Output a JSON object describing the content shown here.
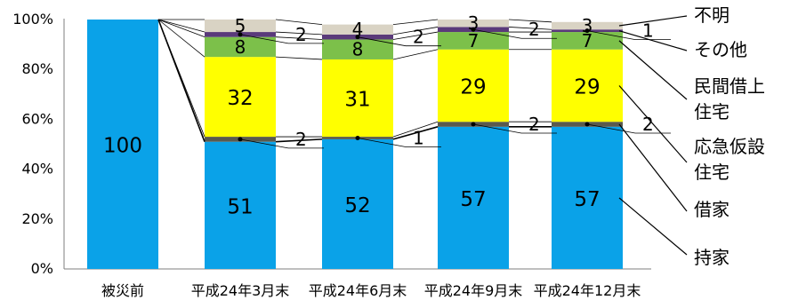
{
  "chart_data": {
    "type": "bar",
    "stacked": true,
    "percent": true,
    "categories": [
      "被災前",
      "平成24年3月末",
      "平成24年6月末",
      "平成24年9月末",
      "平成24年12月末"
    ],
    "ylim": [
      0,
      100
    ],
    "yticks": [
      0,
      20,
      40,
      60,
      80,
      100
    ],
    "ytick_labels": [
      "0%",
      "20%",
      "40%",
      "60%",
      "80%",
      "100%"
    ],
    "series": [
      {
        "name": "持家",
        "color": "#0aa2e8",
        "values": [
          100,
          51,
          52,
          57,
          57
        ]
      },
      {
        "name": "借家",
        "color": "#5a5a4e",
        "values": [
          0,
          2,
          1,
          2,
          2
        ]
      },
      {
        "name": "応急仮設住宅",
        "color": "#ffff00",
        "values": [
          0,
          32,
          31,
          29,
          29
        ]
      },
      {
        "name": "民間借上住宅",
        "color": "#7cc04a",
        "values": [
          0,
          8,
          8,
          7,
          7
        ]
      },
      {
        "name": "その他",
        "color": "#5a3a7a",
        "values": [
          0,
          2,
          2,
          2,
          1
        ]
      },
      {
        "name": "不明",
        "color": "#d9d3c4",
        "values": [
          0,
          5,
          4,
          3,
          3
        ]
      }
    ],
    "legend_lines": [
      "不明",
      "その他",
      "民間借上",
      "住宅",
      "応急仮設",
      "住宅",
      "借家",
      "持家"
    ],
    "grid": false
  }
}
